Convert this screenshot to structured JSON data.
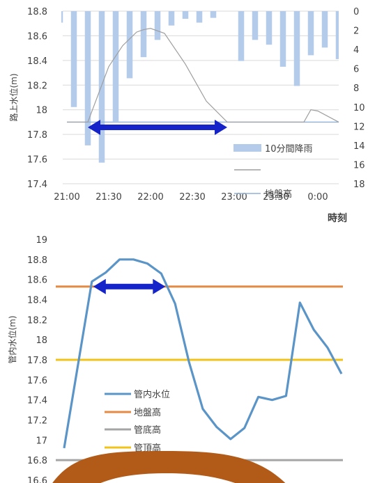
{
  "chart_data": [
    {
      "type": "bar+line",
      "title": "",
      "ylabel": "路上水位(m)",
      "ylim": [
        17.4,
        18.8
      ],
      "yticks": [
        "18.8",
        "18.6",
        "18.4",
        "18.2",
        "18",
        "17.8",
        "17.6",
        "17.4"
      ],
      "y2lim": [
        0,
        18
      ],
      "y2_inverted": true,
      "y2ticks": [
        "0",
        "2",
        "4",
        "6",
        "8",
        "10",
        "12",
        "14",
        "16",
        "18"
      ],
      "xticks": [
        "21:00",
        "21:30",
        "22:00",
        "22:30",
        "23:00",
        "23:30",
        "0:00"
      ],
      "xlabel": "時刻",
      "x_minutes": [
        0,
        195
      ],
      "grid": true,
      "legend_position": "bottom-right",
      "series": [
        {
          "name": "10分間降雨",
          "kind": "bar",
          "color": "#b4cbea",
          "x": [
            -5,
            5,
            15,
            25,
            35,
            45,
            55,
            65,
            75,
            85,
            95,
            105,
            115,
            125,
            135,
            145,
            155,
            165,
            175,
            185,
            195
          ],
          "values": [
            1.2,
            10.0,
            14.0,
            15.8,
            11.5,
            7.0,
            4.8,
            3.0,
            1.5,
            0.8,
            1.2,
            0.7,
            0,
            5.2,
            3.0,
            3.5,
            5.8,
            7.8,
            4.6,
            3.8,
            5.0
          ]
        },
        {
          "name": "",
          "kind": "line",
          "color": "#9e9e9e",
          "x": [
            0,
            15,
            30,
            40,
            50,
            55,
            60,
            70,
            85,
            100,
            115,
            130,
            145,
            155,
            165,
            170,
            175,
            180,
            195
          ],
          "values": [
            17.9,
            17.9,
            18.35,
            18.52,
            18.63,
            18.65,
            18.66,
            18.62,
            18.37,
            18.07,
            17.9,
            17.9,
            17.9,
            17.9,
            17.9,
            17.9,
            18.0,
            17.99,
            17.9
          ]
        },
        {
          "name": "地盤高",
          "kind": "line",
          "color": "#8fb0d6",
          "x": [
            0,
            195
          ],
          "values": [
            17.9,
            17.9
          ]
        }
      ],
      "annotation": {
        "kind": "double-arrow",
        "from_x": 15,
        "to_x": 115,
        "y": 17.88,
        "color": "#1424c8"
      }
    },
    {
      "type": "line",
      "title": "",
      "ylabel": "管内水位(m)",
      "ylim": [
        16.6,
        19
      ],
      "yticks": [
        "19",
        "18.8",
        "18.6",
        "18.4",
        "18.2",
        "18",
        "17.8",
        "17.6",
        "17.4",
        "17.2",
        "17",
        "16.8",
        "16.6"
      ],
      "grid": false,
      "legend_position": "bottom-left",
      "x_range": [
        0,
        20
      ],
      "series": [
        {
          "name": "管内水位",
          "color": "#5b95c8",
          "x": [
            0,
            2,
            3,
            4,
            5,
            6,
            7,
            8,
            9,
            10,
            11,
            12,
            13,
            14,
            15,
            16,
            17,
            18,
            19,
            20
          ],
          "values": [
            16.92,
            18.58,
            18.67,
            18.8,
            18.8,
            18.76,
            18.66,
            18.36,
            17.78,
            17.31,
            17.13,
            17.01,
            17.12,
            17.43,
            17.4,
            17.44,
            18.37,
            18.1,
            17.92,
            17.66
          ]
        },
        {
          "name": "地盤高",
          "color": "#e58a45",
          "x": [
            0,
            20
          ],
          "values": [
            18.53,
            18.53
          ]
        },
        {
          "name": "管底高",
          "color": "#a5a5a5",
          "x": [
            0,
            20
          ],
          "values": [
            16.8,
            16.8
          ]
        },
        {
          "name": "管頂高",
          "color": "#f2c319",
          "x": [
            0,
            20
          ],
          "values": [
            17.8,
            17.8
          ]
        }
      ],
      "annotation": {
        "kind": "double-arrow",
        "from_x": 2,
        "to_x": 7,
        "y": 18.53,
        "color": "#1424c8"
      }
    }
  ],
  "overlay": {
    "kind": "brown-arc-decoration",
    "color": "#b25a17"
  }
}
